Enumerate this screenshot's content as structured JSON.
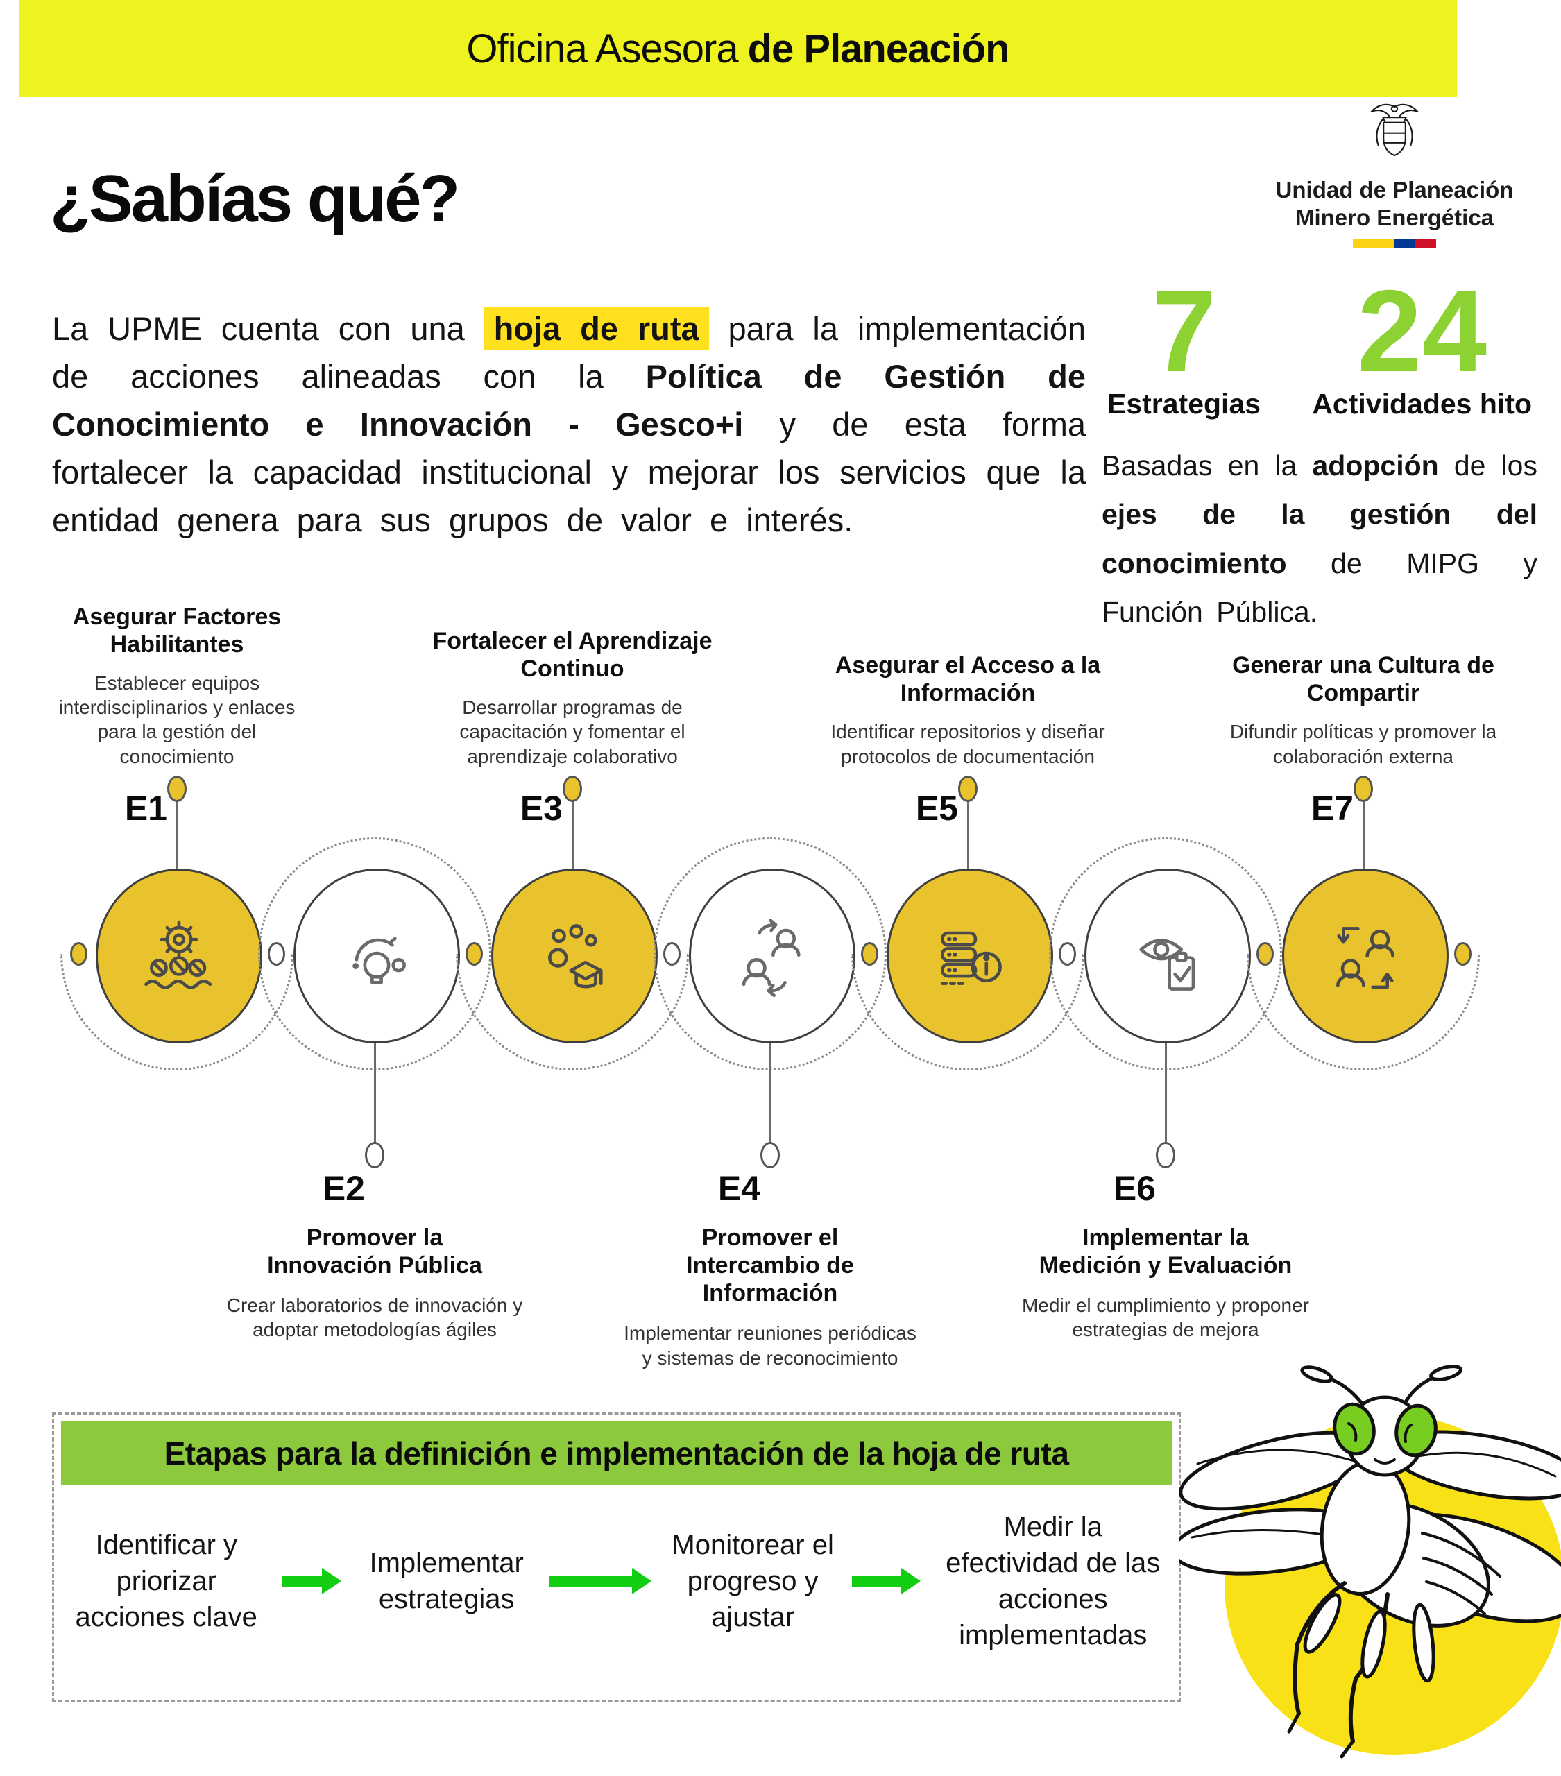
{
  "banner": {
    "text_regular": "Oficina Asesora",
    "text_bold": "de Planeación",
    "bg_color": "#EEF21E"
  },
  "header": {
    "title": "¿Sabías qué?",
    "logo": {
      "crest_icon": "colombia-coat-of-arms",
      "org_line1": "Unidad de Planeación",
      "org_line2": "Minero Energética",
      "flag_colors": [
        "#FCD116",
        "#003893",
        "#CE1126"
      ]
    }
  },
  "intro": {
    "highlight_color": "#FFE01E",
    "paragraph_segments": [
      {
        "text": "La UPME cuenta con una ",
        "style": "normal"
      },
      {
        "text": "hoja de ruta",
        "style": "bold-highlight"
      },
      {
        "text": " para la implementación de acciones alineadas con la ",
        "style": "normal"
      },
      {
        "text": "Política de Gestión de Conocimiento e Innovación - Gesco+i",
        "style": "bold"
      },
      {
        "text": " y de esta forma fortalecer la capacidad institucional y mejorar los servicios que la entidad genera para sus grupos de valor e interés.",
        "style": "normal"
      }
    ]
  },
  "stats": {
    "number_color": "#8DD233",
    "items": [
      {
        "value": "7",
        "label": "Estrategias"
      },
      {
        "value": "24",
        "label": "Actividades hito"
      }
    ],
    "description_segments": [
      {
        "text": "Basadas en la ",
        "style": "normal"
      },
      {
        "text": "adopción",
        "style": "bold"
      },
      {
        "text": " de los ",
        "style": "normal"
      },
      {
        "text": "ejes de la gestión del conocimiento",
        "style": "bold"
      },
      {
        "text": " de MIPG y Función Pública.",
        "style": "normal"
      }
    ]
  },
  "timeline": {
    "node_fill_color": "#E8C32E",
    "stages": [
      {
        "id": "E1",
        "position": "top",
        "filled": true,
        "icon": "gear-team-icon",
        "title": "Asegurar Factores Habilitantes",
        "description": "Establecer equipos interdisciplinarios y enlaces para la gestión del conocimiento"
      },
      {
        "id": "E2",
        "position": "bottom",
        "filled": false,
        "icon": "lightbulb-icon",
        "title": "Promover la Innovación Pública",
        "description": "Crear laboratorios de innovación y adoptar metodologías ágiles"
      },
      {
        "id": "E3",
        "position": "top",
        "filled": true,
        "icon": "graduation-team-icon",
        "title": "Fortalecer el Aprendizaje Continuo",
        "description": "Desarrollar programas de capacitación y fomentar el aprendizaje colaborativo"
      },
      {
        "id": "E4",
        "position": "bottom",
        "filled": false,
        "icon": "people-exchange-icon",
        "title": "Promover el Intercambio de Información",
        "description": "Implementar reuniones periódicas y sistemas de reconocimiento"
      },
      {
        "id": "E5",
        "position": "top",
        "filled": true,
        "icon": "database-info-icon",
        "title": "Asegurar el Acceso a la Información",
        "description": "Identificar repositorios y diseñar protocolos de documentación"
      },
      {
        "id": "E6",
        "position": "bottom",
        "filled": false,
        "icon": "eye-checklist-icon",
        "title": "Implementar la Medición y Evaluación",
        "description": "Medir el cumplimiento y proponer estrategias de mejora"
      },
      {
        "id": "E7",
        "position": "top",
        "filled": true,
        "icon": "people-share-icon",
        "title": "Generar una Cultura de Compartir",
        "description": "Difundir políticas y promover la colaboración externa"
      }
    ]
  },
  "stages_box": {
    "title": "Etapas para la definición e implementación de la hoja de ruta",
    "title_bg_color": "#8DC93C",
    "arrow_color": "#12CD12",
    "steps": [
      "Identificar y priorizar acciones clave",
      "Implementar estrategias",
      "Monitorear el progreso y ajustar",
      "Medir la efectividad de las acciones implementadas"
    ]
  },
  "mascot": {
    "name": "upme-firefly-mascot",
    "bg_color": "#F8E217",
    "eye_color": "#77CE21"
  }
}
